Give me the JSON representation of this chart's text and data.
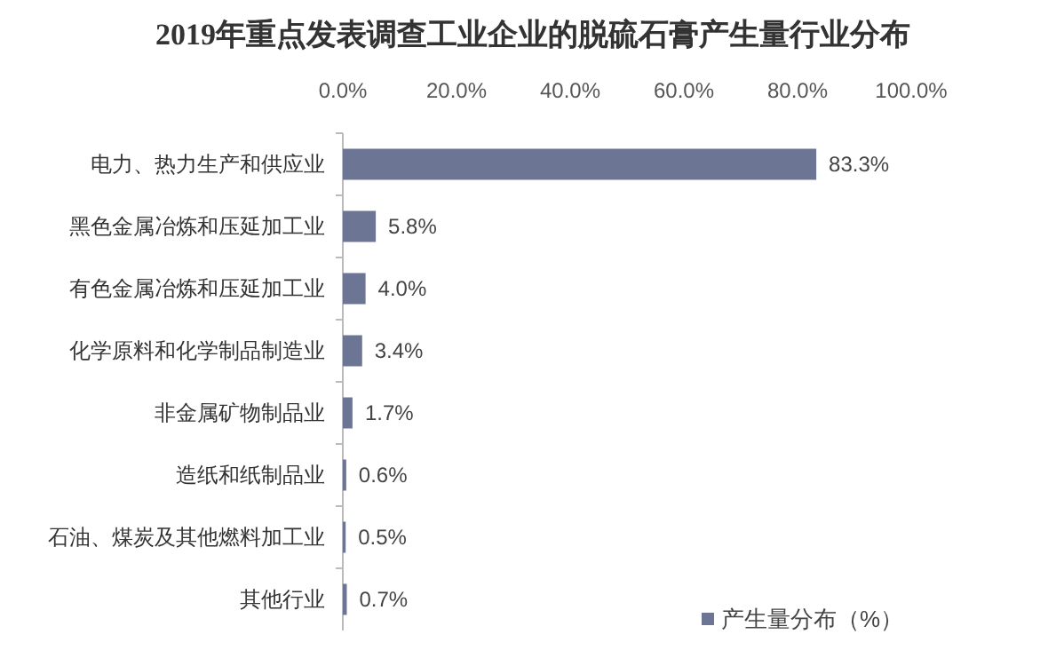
{
  "chart_data": {
    "type": "bar",
    "orientation": "horizontal",
    "title": "2019年重点发表调查工业企业的脱硫石膏产生量行业分布",
    "categories": [
      "电力、热力生产和供应业",
      "黑色金属冶炼和压延加工业",
      "有色金属冶炼和压延加工业",
      "化学原料和化学制品制造业",
      "非金属矿物制品业",
      "造纸和纸制品业",
      "石油、煤炭及其他燃料加工业",
      "其他行业"
    ],
    "series": [
      {
        "name": "产生量分布（%）",
        "color": "#6c7593",
        "values": [
          83.3,
          5.8,
          4.0,
          3.4,
          1.7,
          0.6,
          0.5,
          0.7
        ],
        "value_labels": [
          "83.3%",
          "5.8%",
          "4.0%",
          "3.4%",
          "1.7%",
          "0.6%",
          "0.5%",
          "0.7%"
        ]
      }
    ],
    "xlim": [
      0,
      100
    ],
    "xticks": [
      {
        "value": 0,
        "label": "0.0%"
      },
      {
        "value": 20,
        "label": "20.0%"
      },
      {
        "value": 40,
        "label": "40.0%"
      },
      {
        "value": 60,
        "label": "60.0%"
      },
      {
        "value": 80,
        "label": "80.0%"
      },
      {
        "value": 100,
        "label": "100.0%"
      }
    ],
    "legend": "bottom right",
    "grid": false
  }
}
